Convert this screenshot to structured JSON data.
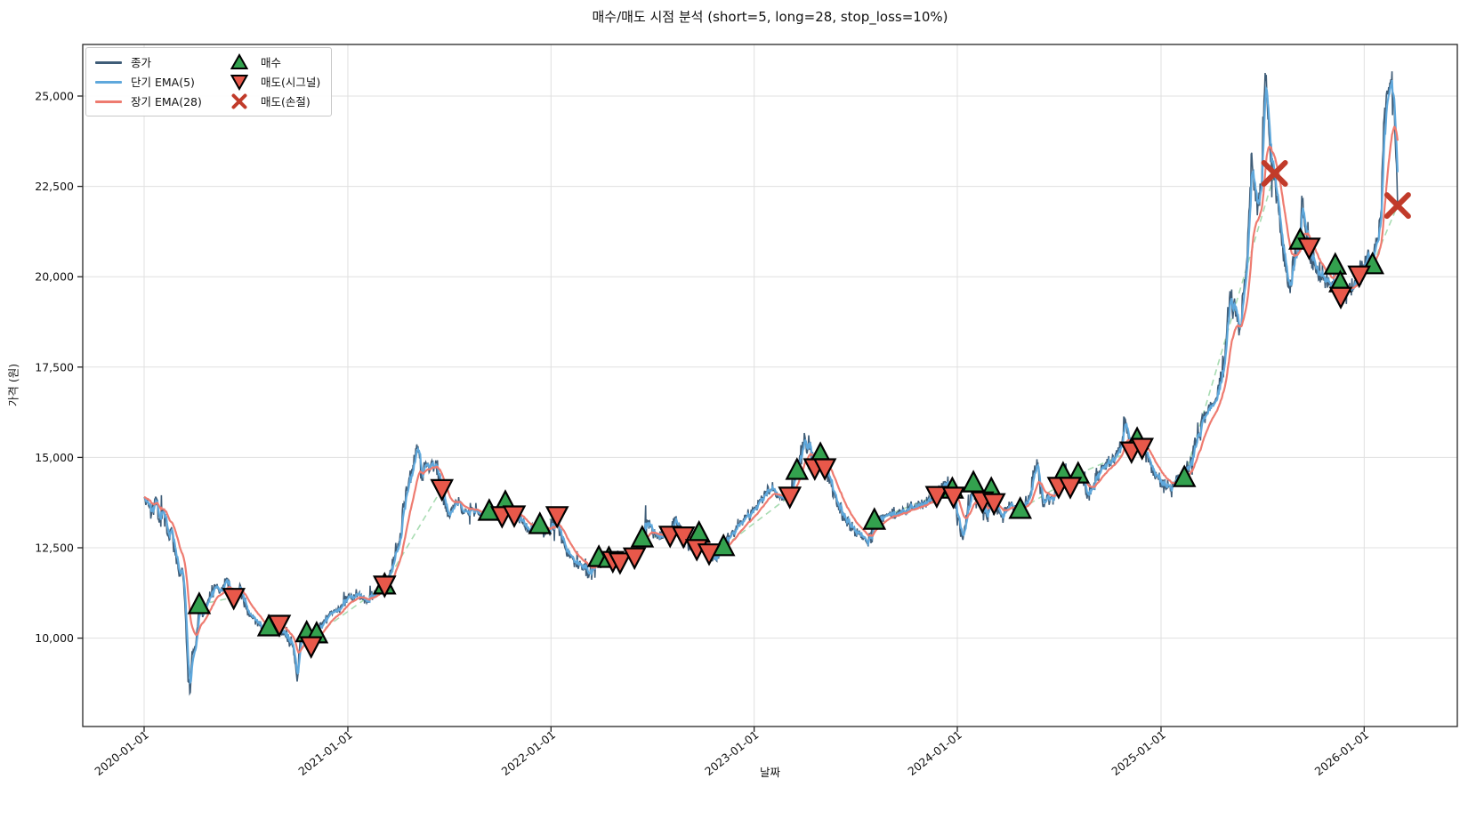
{
  "title": "매수/매도 시점 분석 (short=5, long=28, stop_loss=10%)",
  "axes": {
    "x_label": "날짜",
    "y_label": "가격 (원)",
    "x_tick_labels": [
      "2020-01-01",
      "2021-01-01",
      "2022-01-01",
      "2023-01-01",
      "2024-01-01",
      "2025-01-01",
      "2026-01-01"
    ],
    "y_tick_values": [
      10000,
      12500,
      15000,
      17500,
      20000,
      22500,
      25000
    ],
    "y_tick_labels": [
      "10,000",
      "12,500",
      "15,000",
      "17,500",
      "20,000",
      "22,500",
      "25,000"
    ]
  },
  "legend": {
    "entries": [
      {
        "label": "종가",
        "type": "line",
        "color": "#3f5d78"
      },
      {
        "label": "단기 EMA(5)",
        "type": "line",
        "color": "#5fa8dc"
      },
      {
        "label": "장기 EMA(28)",
        "type": "line",
        "color": "#ee7b70"
      },
      {
        "label": "매수",
        "type": "triangle-up",
        "color": "#33a14e"
      },
      {
        "label": "매도(시그널)",
        "type": "triangle-down",
        "color": "#e8584a"
      },
      {
        "label": "매도(손절)",
        "type": "x",
        "color": "#c13b2a"
      }
    ]
  },
  "chart_data": {
    "type": "line",
    "x_axis": "date",
    "y_axis": "price_krw",
    "params": {
      "short": 5,
      "long": 28,
      "stop_loss_pct": 10
    },
    "grid": true,
    "legend_position": "upper left",
    "ylim": [
      7550,
      26430
    ],
    "connector_style": {
      "color": "#a8dcb2",
      "dashed": true
    },
    "series": [
      {
        "name": "종가",
        "color": "#3f5d78",
        "width": 1.6,
        "keypoints": [
          [
            "2020-01-01",
            13900
          ],
          [
            "2020-01-08",
            13750
          ],
          [
            "2020-01-14",
            13400
          ],
          [
            "2020-01-20",
            13850
          ],
          [
            "2020-01-28",
            13200
          ],
          [
            "2020-02-04",
            13500
          ],
          [
            "2020-02-12",
            12850
          ],
          [
            "2020-02-19",
            13050
          ],
          [
            "2020-02-26",
            12300
          ],
          [
            "2020-03-04",
            11700
          ],
          [
            "2020-03-10",
            11900
          ],
          [
            "2020-03-16",
            10400
          ],
          [
            "2020-03-20",
            8800
          ],
          [
            "2020-03-24",
            8500
          ],
          [
            "2020-03-27",
            9600
          ],
          [
            "2020-04-03",
            9850
          ],
          [
            "2020-04-09",
            10925
          ],
          [
            "2020-04-17",
            10650
          ],
          [
            "2020-04-24",
            11000
          ],
          [
            "2020-05-08",
            11450
          ],
          [
            "2020-05-15",
            11250
          ],
          [
            "2020-05-29",
            11650
          ],
          [
            "2020-06-10",
            11130
          ],
          [
            "2020-06-19",
            11350
          ],
          [
            "2020-07-03",
            10800
          ],
          [
            "2020-07-17",
            10550
          ],
          [
            "2020-07-31",
            10250
          ],
          [
            "2020-08-12",
            10310
          ],
          [
            "2020-08-21",
            10550
          ],
          [
            "2020-08-31",
            10385
          ],
          [
            "2020-09-11",
            10050
          ],
          [
            "2020-09-25",
            9750
          ],
          [
            "2020-10-02",
            8800
          ],
          [
            "2020-10-07",
            9900
          ],
          [
            "2020-10-19",
            10145
          ],
          [
            "2020-10-27",
            9790
          ],
          [
            "2020-11-06",
            10115
          ],
          [
            "2020-11-20",
            10500
          ],
          [
            "2020-12-06",
            10750
          ],
          [
            "2020-12-22",
            10900
          ],
          [
            "2021-01-05",
            11150
          ],
          [
            "2021-01-21",
            11250
          ],
          [
            "2021-02-06",
            11000
          ],
          [
            "2021-02-22",
            11300
          ],
          [
            "2021-03-08",
            11470
          ],
          [
            "2021-03-20",
            11900
          ],
          [
            "2021-04-05",
            12890
          ],
          [
            "2021-04-12",
            13750
          ],
          [
            "2021-04-20",
            14300
          ],
          [
            "2021-05-07",
            15310
          ],
          [
            "2021-05-14",
            14370
          ],
          [
            "2021-05-21",
            14870
          ],
          [
            "2021-05-28",
            14620
          ],
          [
            "2021-06-08",
            14920
          ],
          [
            "2021-06-19",
            14140
          ],
          [
            "2021-07-02",
            13400
          ],
          [
            "2021-07-16",
            13750
          ],
          [
            "2021-07-30",
            13500
          ],
          [
            "2021-08-13",
            13600
          ],
          [
            "2021-08-27",
            13400
          ],
          [
            "2021-09-12",
            13510
          ],
          [
            "2021-09-24",
            13300
          ],
          [
            "2021-10-05",
            13390
          ],
          [
            "2021-10-11",
            13755
          ],
          [
            "2021-10-27",
            13410
          ],
          [
            "2021-11-10",
            13200
          ],
          [
            "2021-11-24",
            13000
          ],
          [
            "2021-12-12",
            13140
          ],
          [
            "2021-12-24",
            12900
          ],
          [
            "2022-01-12",
            13390
          ],
          [
            "2022-01-26",
            12500
          ],
          [
            "2022-02-09",
            12200
          ],
          [
            "2022-03-11",
            11790
          ],
          [
            "2022-03-28",
            12230
          ],
          [
            "2022-04-08",
            12080
          ],
          [
            "2022-04-15",
            12205
          ],
          [
            "2022-04-22",
            12150
          ],
          [
            "2022-05-05",
            12110
          ],
          [
            "2022-05-20",
            12400
          ],
          [
            "2022-05-31",
            12250
          ],
          [
            "2022-06-14",
            12770
          ],
          [
            "2022-06-24",
            13260
          ],
          [
            "2022-07-08",
            12820
          ],
          [
            "2022-08-03",
            12850
          ],
          [
            "2022-08-12",
            13340
          ],
          [
            "2022-08-27",
            12830
          ],
          [
            "2022-09-09",
            12450
          ],
          [
            "2022-09-20",
            12480
          ],
          [
            "2022-09-24",
            12900
          ],
          [
            "2022-10-05",
            12550
          ],
          [
            "2022-10-12",
            12360
          ],
          [
            "2022-10-21",
            12200
          ],
          [
            "2022-11-07",
            12530
          ],
          [
            "2022-11-21",
            12900
          ],
          [
            "2022-12-08",
            13210
          ],
          [
            "2022-12-22",
            13400
          ],
          [
            "2023-01-10",
            13800
          ],
          [
            "2023-02-01",
            14120
          ],
          [
            "2023-02-15",
            13900
          ],
          [
            "2023-03-06",
            13930
          ],
          [
            "2023-03-19",
            14640
          ],
          [
            "2023-04-02",
            15600
          ],
          [
            "2023-04-20",
            14715
          ],
          [
            "2023-04-30",
            15080
          ],
          [
            "2023-05-08",
            14715
          ],
          [
            "2023-05-26",
            14000
          ],
          [
            "2023-06-16",
            13200
          ],
          [
            "2023-07-07",
            12900
          ],
          [
            "2023-07-24",
            12600
          ],
          [
            "2023-08-05",
            13260
          ],
          [
            "2023-08-25",
            13400
          ],
          [
            "2023-09-15",
            13450
          ],
          [
            "2023-10-06",
            13600
          ],
          [
            "2023-10-27",
            13700
          ],
          [
            "2023-11-25",
            13950
          ],
          [
            "2023-12-08",
            14295
          ],
          [
            "2023-12-23",
            14120
          ],
          [
            "2023-12-25",
            13930
          ],
          [
            "2024-01-03",
            13300
          ],
          [
            "2024-01-11",
            12720
          ],
          [
            "2024-01-19",
            13500
          ],
          [
            "2024-01-30",
            14295
          ],
          [
            "2024-02-08",
            13700
          ],
          [
            "2024-02-15",
            13800
          ],
          [
            "2024-02-23",
            13310
          ],
          [
            "2024-03-02",
            14120
          ],
          [
            "2024-03-07",
            13750
          ],
          [
            "2024-03-20",
            13340
          ],
          [
            "2024-04-05",
            13700
          ],
          [
            "2024-04-23",
            13560
          ],
          [
            "2024-05-10",
            13900
          ],
          [
            "2024-05-23",
            14950
          ],
          [
            "2024-06-03",
            13630
          ],
          [
            "2024-06-17",
            13900
          ],
          [
            "2024-07-01",
            14200
          ],
          [
            "2024-07-09",
            14540
          ],
          [
            "2024-07-22",
            14200
          ],
          [
            "2024-08-05",
            14540
          ],
          [
            "2024-08-23",
            13950
          ],
          [
            "2024-09-13",
            14620
          ],
          [
            "2024-10-04",
            14910
          ],
          [
            "2024-10-18",
            15200
          ],
          [
            "2024-10-29",
            16050
          ],
          [
            "2024-11-05",
            15400
          ],
          [
            "2024-11-09",
            15180
          ],
          [
            "2024-11-19",
            15500
          ],
          [
            "2024-11-28",
            15280
          ],
          [
            "2024-12-13",
            14800
          ],
          [
            "2024-12-27",
            14400
          ],
          [
            "2025-01-10",
            14120
          ],
          [
            "2025-01-24",
            14250
          ],
          [
            "2025-02-12",
            14440
          ],
          [
            "2025-03-06",
            15500
          ],
          [
            "2025-03-19",
            16170
          ],
          [
            "2025-04-04",
            16500
          ],
          [
            "2025-04-20",
            17150
          ],
          [
            "2025-05-05",
            19600
          ],
          [
            "2025-05-22",
            18500
          ],
          [
            "2025-06-02",
            20050
          ],
          [
            "2025-06-13",
            23430
          ],
          [
            "2025-06-23",
            21700
          ],
          [
            "2025-06-30",
            22500
          ],
          [
            "2025-07-07",
            25640
          ],
          [
            "2025-07-11",
            24700
          ],
          [
            "2025-07-16",
            23480
          ],
          [
            "2025-07-24",
            22860
          ],
          [
            "2025-08-04",
            21300
          ],
          [
            "2025-08-18",
            19710
          ],
          [
            "2025-09-01",
            20600
          ],
          [
            "2025-09-08",
            21010
          ],
          [
            "2025-09-11",
            22240
          ],
          [
            "2025-09-18",
            21200
          ],
          [
            "2025-09-24",
            20820
          ],
          [
            "2025-10-05",
            20280
          ],
          [
            "2025-10-20",
            19960
          ],
          [
            "2025-11-06",
            19790
          ],
          [
            "2025-11-10",
            20320
          ],
          [
            "2025-11-15",
            20100
          ],
          [
            "2025-11-19",
            19830
          ],
          [
            "2025-11-20",
            19460
          ],
          [
            "2025-12-02",
            19540
          ],
          [
            "2025-12-16",
            19900
          ],
          [
            "2025-12-23",
            20050
          ],
          [
            "2026-01-06",
            20570
          ],
          [
            "2026-01-16",
            20330
          ],
          [
            "2026-01-23",
            21000
          ],
          [
            "2026-01-30",
            21500
          ],
          [
            "2026-02-06",
            24400
          ],
          [
            "2026-02-18",
            25460
          ],
          [
            "2026-02-23",
            24900
          ],
          [
            "2026-02-27",
            23300
          ],
          [
            "2026-03-02",
            21970
          ]
        ]
      },
      {
        "name": "단기 EMA(5)",
        "color": "#5fa8dc",
        "width": 2.2,
        "derived_from": "종가",
        "ema_span": 5
      },
      {
        "name": "장기 EMA(28)",
        "color": "#ee7b70",
        "width": 2.2,
        "derived_from": "종가",
        "ema_span": 28
      }
    ],
    "signals": {
      "buy": [
        [
          "2020-04-09",
          10925
        ],
        [
          "2020-08-12",
          10310
        ],
        [
          "2020-10-19",
          10145
        ],
        [
          "2020-11-06",
          10115
        ],
        [
          "2021-03-08",
          11470
        ],
        [
          "2021-09-12",
          13510
        ],
        [
          "2021-10-11",
          13755
        ],
        [
          "2021-12-12",
          13140
        ],
        [
          "2022-03-28",
          12230
        ],
        [
          "2022-04-15",
          12205
        ],
        [
          "2022-06-14",
          12770
        ],
        [
          "2022-09-24",
          12900
        ],
        [
          "2022-11-07",
          12530
        ],
        [
          "2023-03-19",
          14640
        ],
        [
          "2023-04-30",
          15080
        ],
        [
          "2023-08-05",
          13260
        ],
        [
          "2023-12-23",
          14120
        ],
        [
          "2024-01-30",
          14295
        ],
        [
          "2024-03-02",
          14120
        ],
        [
          "2024-04-23",
          13560
        ],
        [
          "2024-07-09",
          14540
        ],
        [
          "2024-08-05",
          14540
        ],
        [
          "2024-11-19",
          15500
        ],
        [
          "2025-02-12",
          14440
        ],
        [
          "2025-09-08",
          21010
        ],
        [
          "2025-11-10",
          20320
        ],
        [
          "2025-11-19",
          19830
        ],
        [
          "2026-01-16",
          20330
        ]
      ],
      "sell_signal": [
        [
          "2020-06-10",
          11130
        ],
        [
          "2020-08-31",
          10385
        ],
        [
          "2020-10-27",
          9790
        ],
        [
          "2021-03-08",
          11470
        ],
        [
          "2021-06-19",
          14140
        ],
        [
          "2021-10-05",
          13390
        ],
        [
          "2021-10-27",
          13410
        ],
        [
          "2022-01-12",
          13390
        ],
        [
          "2022-04-22",
          12150
        ],
        [
          "2022-05-05",
          12110
        ],
        [
          "2022-05-31",
          12250
        ],
        [
          "2022-08-03",
          12850
        ],
        [
          "2022-08-27",
          12830
        ],
        [
          "2022-09-20",
          12480
        ],
        [
          "2022-10-12",
          12360
        ],
        [
          "2023-03-06",
          13930
        ],
        [
          "2023-04-20",
          14715
        ],
        [
          "2023-05-08",
          14715
        ],
        [
          "2023-11-25",
          13950
        ],
        [
          "2023-12-25",
          13930
        ],
        [
          "2024-02-15",
          13800
        ],
        [
          "2024-03-07",
          13750
        ],
        [
          "2024-07-01",
          14200
        ],
        [
          "2024-07-22",
          14200
        ],
        [
          "2024-11-09",
          15180
        ],
        [
          "2024-11-28",
          15280
        ],
        [
          "2025-09-24",
          20820
        ],
        [
          "2025-11-20",
          19460
        ],
        [
          "2025-12-23",
          20050
        ]
      ],
      "sell_stop_loss": [
        [
          "2025-07-24",
          22860
        ],
        [
          "2026-03-02",
          21970
        ]
      ]
    }
  }
}
